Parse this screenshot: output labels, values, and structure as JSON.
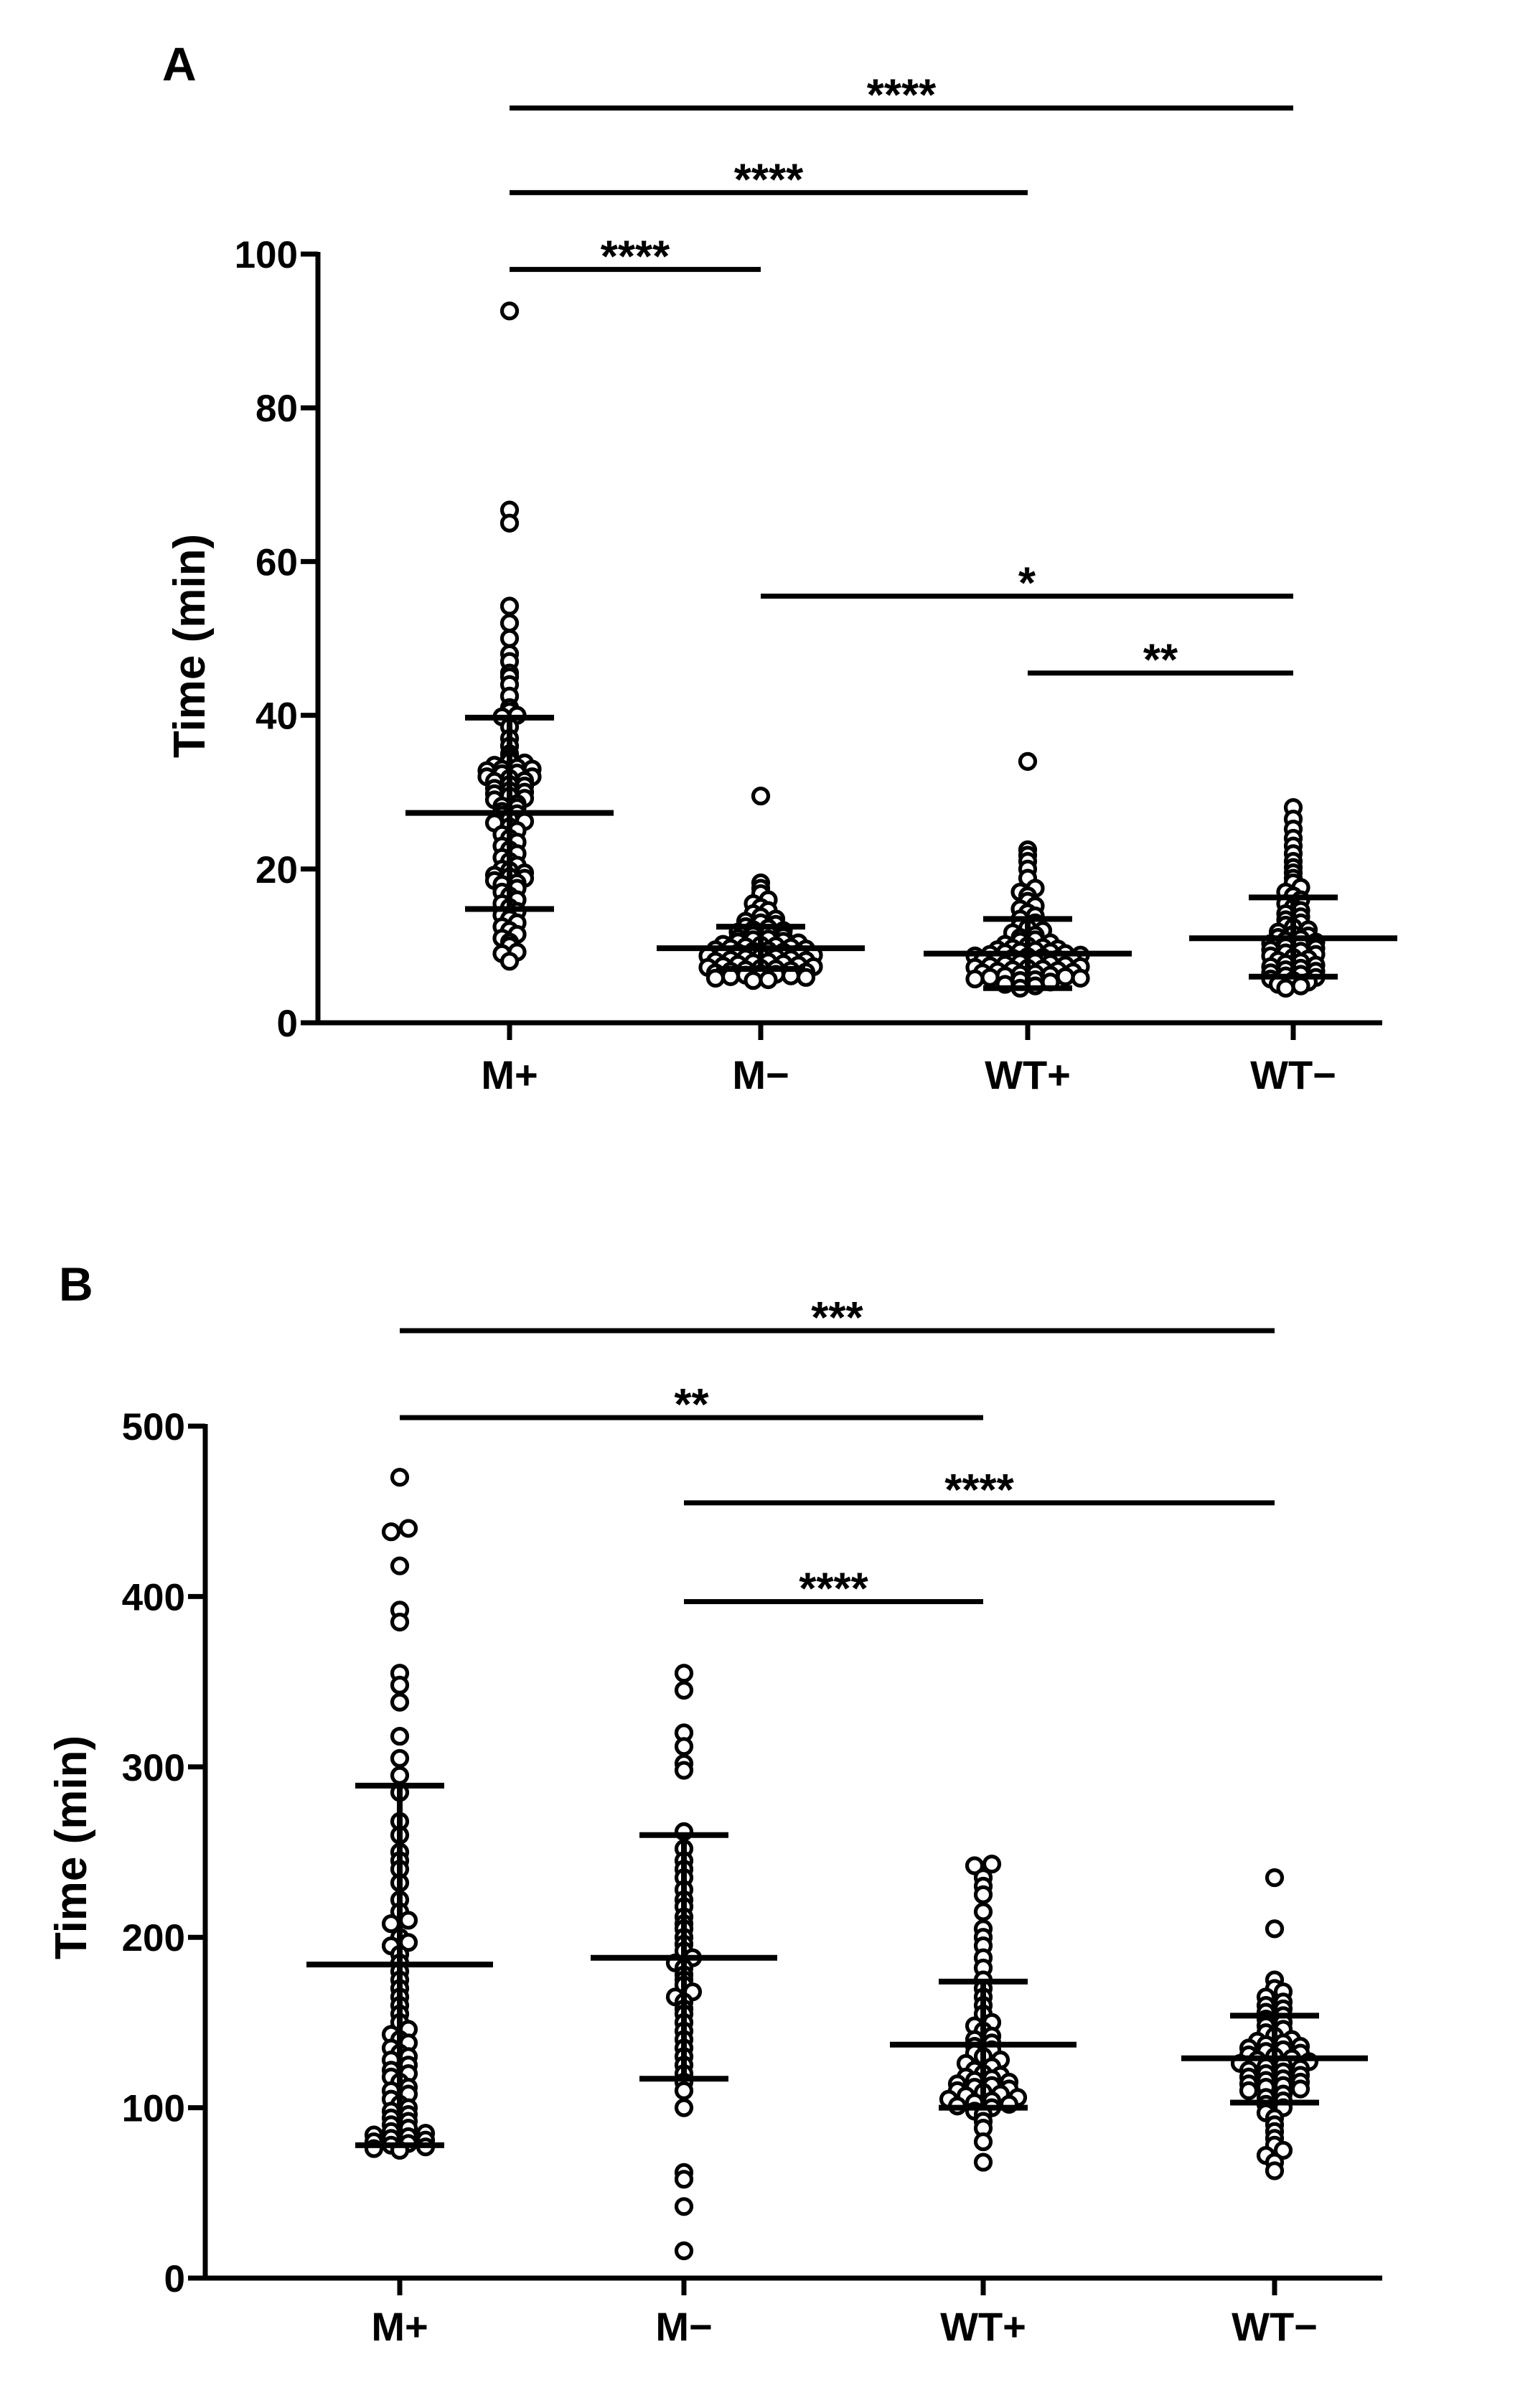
{
  "figure": {
    "panels": [
      "A",
      "B"
    ]
  },
  "chart_data": [
    {
      "panel": "A",
      "type": "scatter",
      "title": "",
      "xlabel": "",
      "ylabel": "Time (min)",
      "ylim": [
        0,
        100
      ],
      "yticks": [
        0,
        20,
        40,
        60,
        80,
        100
      ],
      "categories": [
        "M+",
        "M−",
        "WT+",
        "WT−"
      ],
      "series": [
        {
          "name": "M+",
          "mean": 27.3,
          "sd_low": 14.8,
          "sd_high": 39.7,
          "values": [
            92.6,
            66.7,
            65.0,
            54.2,
            52.0,
            50.0,
            48.0,
            47.0,
            45.5,
            45.0,
            44.0,
            42.5,
            41.0,
            40.5,
            40.0,
            39.8,
            38.5,
            37.0,
            36.0,
            35.0,
            34.5,
            34.0,
            33.8,
            33.5,
            33.2,
            33.0,
            33.0,
            32.8,
            32.5,
            32.4,
            32.0,
            32.0,
            31.8,
            31.5,
            31.4,
            31.0,
            30.8,
            30.5,
            30.2,
            30.0,
            29.8,
            29.5,
            29.2,
            29.0,
            28.5,
            28.2,
            28.0,
            27.5,
            27.2,
            27.0,
            26.5,
            26.2,
            26.0,
            25.5,
            25.0,
            24.5,
            24.0,
            23.5,
            23.0,
            22.5,
            22.0,
            21.5,
            21.0,
            20.5,
            20.0,
            19.8,
            19.5,
            19.2,
            19.0,
            18.8,
            18.5,
            18.2,
            18.0,
            17.5,
            17.0,
            16.5,
            16.0,
            15.5,
            15.0,
            14.5,
            14.0,
            13.5,
            13.0,
            12.5,
            12.0,
            11.5,
            11.0,
            10.5,
            10.0,
            9.2,
            9.0,
            8.0
          ]
        },
        {
          "name": "M−",
          "mean": 9.7,
          "sd_low": 7.0,
          "sd_high": 12.5,
          "values": [
            29.5,
            18.2,
            17.5,
            16.8,
            16.0,
            15.5,
            15.0,
            14.6,
            14.2,
            13.8,
            13.5,
            13.2,
            13.0,
            12.8,
            12.5,
            12.3,
            12.1,
            12.0,
            11.8,
            11.6,
            11.4,
            11.2,
            11.0,
            10.9,
            10.8,
            10.6,
            10.5,
            10.4,
            10.2,
            10.1,
            10.0,
            9.9,
            9.8,
            9.7,
            9.6,
            9.5,
            9.4,
            9.3,
            9.2,
            9.1,
            9.0,
            8.9,
            8.8,
            8.7,
            8.6,
            8.5,
            8.4,
            8.3,
            8.2,
            8.1,
            8.0,
            7.9,
            7.8,
            7.7,
            7.6,
            7.5,
            7.4,
            7.3,
            7.2,
            7.1,
            7.0,
            6.9,
            6.8,
            6.7,
            6.6,
            6.5,
            6.4,
            6.3,
            6.2,
            6.1,
            6.0,
            5.9,
            5.8,
            5.6,
            5.5
          ]
        },
        {
          "name": "WT+",
          "mean": 9.0,
          "sd_low": 4.5,
          "sd_high": 13.5,
          "values": [
            34.0,
            22.5,
            21.8,
            21.0,
            20.0,
            18.8,
            17.5,
            17.0,
            16.5,
            15.8,
            15.2,
            14.8,
            14.3,
            13.9,
            13.5,
            13.0,
            12.6,
            12.3,
            12.0,
            11.7,
            11.4,
            11.1,
            10.8,
            10.6,
            10.4,
            10.2,
            10.0,
            9.8,
            9.7,
            9.6,
            9.5,
            9.4,
            9.3,
            9.2,
            9.1,
            9.0,
            8.9,
            8.8,
            8.7,
            8.6,
            8.5,
            8.4,
            8.3,
            8.2,
            8.1,
            8.0,
            7.9,
            7.8,
            7.7,
            7.6,
            7.5,
            7.4,
            7.3,
            7.2,
            7.1,
            7.0,
            6.9,
            6.8,
            6.7,
            6.6,
            6.5,
            6.4,
            6.3,
            6.2,
            6.1,
            6.0,
            5.9,
            5.8,
            5.7,
            5.6,
            5.5,
            5.3,
            5.0,
            4.8,
            4.5
          ]
        },
        {
          "name": "WT−",
          "mean": 11.0,
          "sd_low": 6.0,
          "sd_high": 16.3,
          "values": [
            28.0,
            26.5,
            25.2,
            24.0,
            23.0,
            22.0,
            21.0,
            20.2,
            19.5,
            18.8,
            18.2,
            17.6,
            17.0,
            16.5,
            16.0,
            15.5,
            15.0,
            14.6,
            14.2,
            13.8,
            13.4,
            13.0,
            12.7,
            12.4,
            12.1,
            11.8,
            11.5,
            11.3,
            11.1,
            10.9,
            10.7,
            10.5,
            10.3,
            10.1,
            9.9,
            9.7,
            9.5,
            9.3,
            9.1,
            8.9,
            8.7,
            8.5,
            8.3,
            8.1,
            7.9,
            7.7,
            7.5,
            7.3,
            7.1,
            6.9,
            6.7,
            6.5,
            6.3,
            6.1,
            5.9,
            5.7,
            5.5,
            5.3,
            5.0,
            4.8,
            4.5
          ]
        }
      ],
      "significance": [
        {
          "from": 0,
          "to": 3,
          "label": "****",
          "y": 119
        },
        {
          "from": 0,
          "to": 2,
          "label": "****",
          "y": 108
        },
        {
          "from": 0,
          "to": 1,
          "label": "****",
          "y": 98
        },
        {
          "from": 1,
          "to": 3,
          "label": "*",
          "y": 55.5
        },
        {
          "from": 2,
          "to": 3,
          "label": "**",
          "y": 45.5
        }
      ]
    },
    {
      "panel": "B",
      "type": "scatter",
      "title": "",
      "xlabel": "",
      "ylabel": "Time (min)",
      "ylim": [
        0,
        500
      ],
      "yticks": [
        0,
        100,
        200,
        300,
        400,
        500
      ],
      "categories": [
        "M+",
        "M−",
        "WT+",
        "WT−"
      ],
      "series": [
        {
          "name": "M+",
          "mean": 184,
          "sd_low": 78,
          "sd_high": 289,
          "values": [
            470,
            440,
            438,
            418,
            392,
            385,
            355,
            348,
            338,
            318,
            305,
            295,
            285,
            268,
            260,
            250,
            245,
            240,
            232,
            222,
            215,
            210,
            208,
            200,
            197,
            195,
            190,
            185,
            180,
            175,
            170,
            165,
            160,
            155,
            150,
            146,
            143,
            140,
            138,
            135,
            132,
            130,
            128,
            125,
            122,
            120,
            118,
            115,
            112,
            110,
            108,
            105,
            102,
            100,
            98,
            96,
            94,
            92,
            90,
            88,
            86,
            85,
            84,
            83,
            82,
            81,
            80,
            79,
            78,
            77,
            76,
            75
          ]
        },
        {
          "name": "M−",
          "mean": 188,
          "sd_low": 117,
          "sd_high": 260,
          "values": [
            355,
            345,
            320,
            312,
            302,
            298,
            262,
            252,
            245,
            240,
            235,
            228,
            222,
            218,
            212,
            208,
            205,
            200,
            196,
            192,
            188,
            185,
            182,
            178,
            175,
            172,
            168,
            165,
            162,
            158,
            155,
            150,
            145,
            140,
            135,
            130,
            125,
            120,
            115,
            110,
            100,
            62,
            58,
            42,
            16
          ]
        },
        {
          "name": "WT+",
          "mean": 137,
          "sd_low": 100,
          "sd_high": 174,
          "values": [
            243,
            242,
            235,
            230,
            225,
            215,
            205,
            200,
            195,
            188,
            182,
            175,
            170,
            165,
            160,
            155,
            150,
            148,
            145,
            142,
            140,
            138,
            136,
            134,
            132,
            130,
            128,
            126,
            124,
            122,
            120,
            119,
            118,
            117,
            116,
            115,
            114,
            113,
            112,
            111,
            110,
            109,
            108,
            107,
            106,
            105,
            104,
            103,
            102,
            101,
            100,
            98,
            96,
            92,
            88,
            80,
            68
          ]
        },
        {
          "name": "WT−",
          "mean": 129,
          "sd_low": 103,
          "sd_high": 154,
          "values": [
            235,
            205,
            175,
            170,
            168,
            165,
            162,
            160,
            158,
            156,
            154,
            152,
            150,
            148,
            146,
            144,
            142,
            140,
            139,
            138,
            137,
            136,
            135,
            134,
            133,
            132,
            131,
            130,
            129,
            128,
            127,
            126,
            125,
            124,
            123,
            122,
            121,
            120,
            119,
            118,
            117,
            116,
            115,
            114,
            113,
            112,
            111,
            110,
            108,
            106,
            104,
            102,
            100,
            97,
            94,
            90,
            86,
            82,
            78,
            75,
            72,
            68,
            63
          ]
        }
      ],
      "significance": [
        {
          "from": 0,
          "to": 3,
          "label": "***",
          "y": 556
        },
        {
          "from": 0,
          "to": 2,
          "label": "**",
          "y": 505
        },
        {
          "from": 1,
          "to": 3,
          "label": "****",
          "y": 455
        },
        {
          "from": 1,
          "to": 2,
          "label": "****",
          "y": 397
        }
      ]
    }
  ]
}
